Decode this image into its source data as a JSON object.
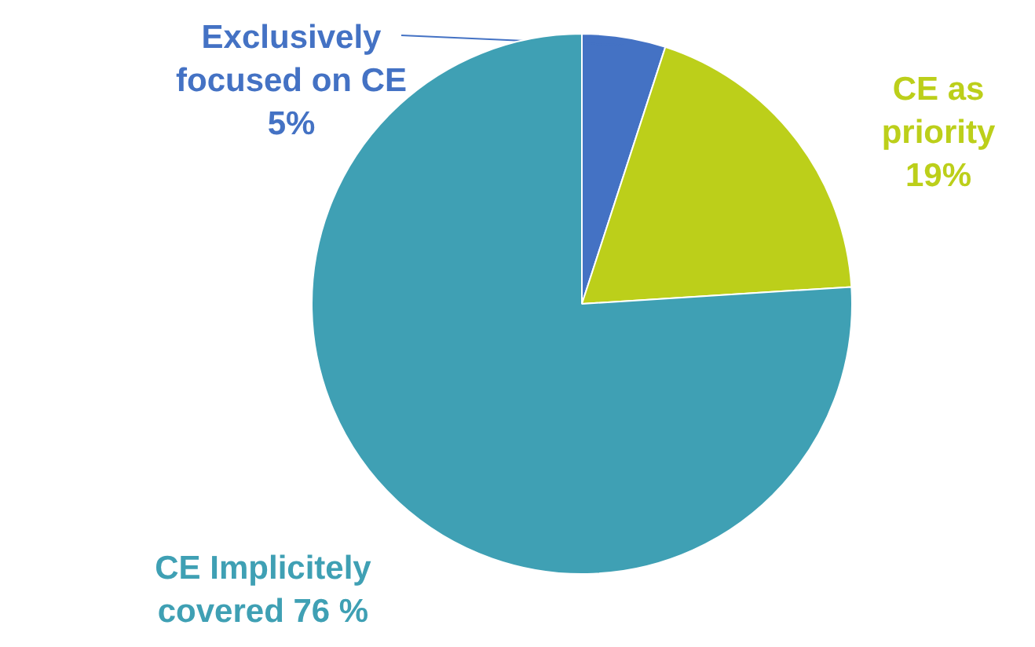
{
  "chart_data": {
    "type": "pie",
    "categories": [
      "Exclusively\nfocused on CE",
      "CE as\npriority",
      "CE Implicitely\ncovered"
    ],
    "values": [
      5,
      19,
      76
    ],
    "colors": [
      "#4472c4",
      "#bccf1a",
      "#3fa0b4"
    ],
    "value_labels": [
      "5%",
      "19%",
      "76 %"
    ]
  }
}
